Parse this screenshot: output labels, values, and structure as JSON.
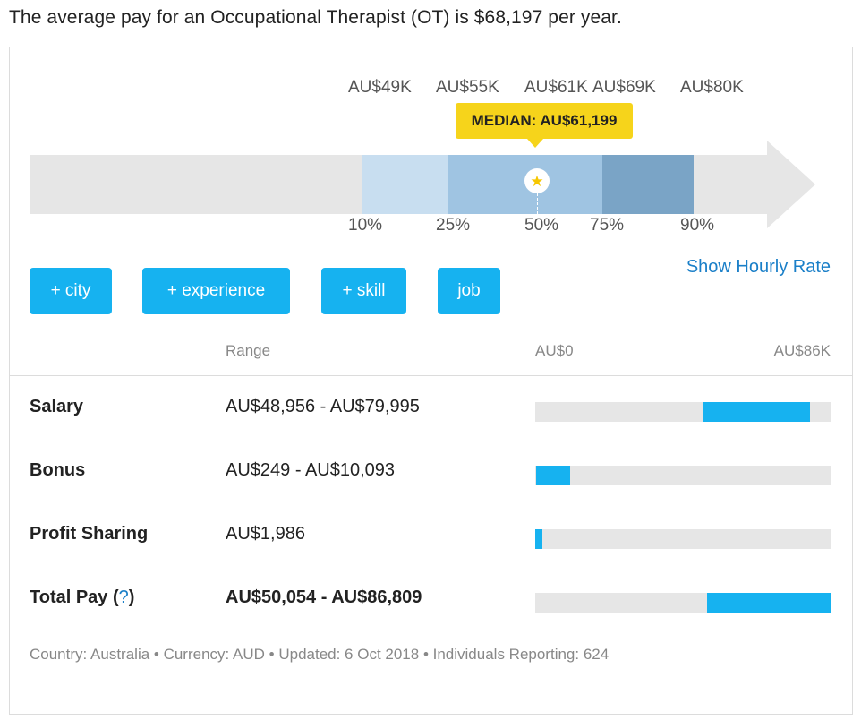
{
  "headline": "The average pay for an Occupational Therapist (OT) is $68,197 per year.",
  "range_scale": {
    "amounts": [
      "AU$49K",
      "AU$55K",
      "AU$61K",
      "AU$69K",
      "AU$80K"
    ],
    "percentiles": [
      "10%",
      "25%",
      "50%",
      "75%",
      "90%"
    ],
    "median_label": "MEDIAN: AU$61,199",
    "median_icon": "star-icon",
    "colors": {
      "p10_25": "#c8def0",
      "p25_75": "#9fc4e2",
      "p75_90": "#7aa4c6",
      "track": "#e6e6e6",
      "median": "#f6d41b"
    }
  },
  "filters": [
    "+ city",
    "+ experience",
    "+ skill",
    "job"
  ],
  "show_hourly_label": "Show Hourly Rate",
  "table": {
    "header_range": "Range",
    "axis_min": "AU$0",
    "axis_max": "AU$86K",
    "rows": [
      {
        "label": "Salary",
        "range": "AU$48,956 - AU$79,995",
        "bar_start": 0.569,
        "bar_end": 0.93
      },
      {
        "label": "Bonus",
        "range": "AU$249 - AU$10,093",
        "bar_start": 0.003,
        "bar_end": 0.117
      },
      {
        "label": "Profit Sharing",
        "range": "AU$1,986",
        "bar_start": 0.0,
        "bar_end": 0.023
      },
      {
        "label": "Total Pay",
        "help": "?",
        "range": "AU$50,054 - AU$86,809",
        "bar_start": 0.582,
        "bar_end": 1.0
      }
    ]
  },
  "footer": "Country: Australia • Currency: AUD • Updated: 6 Oct 2018 • Individuals Reporting: 624",
  "accent_color": "#16b2f0",
  "link_color": "#1a7fc8"
}
